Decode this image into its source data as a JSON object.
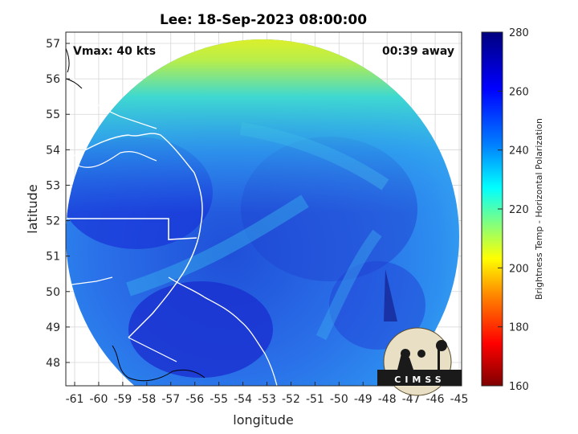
{
  "title": "Lee: 18-Sep-2023 08:00:00",
  "vmax_label": "Vmax: 40 kts",
  "time_label": "00:39 away",
  "x_axis": {
    "label": "longitude",
    "ticks": [
      "-61",
      "-60",
      "-59",
      "-58",
      "-57",
      "-56",
      "-55",
      "-54",
      "-53",
      "-52",
      "-51",
      "-50",
      "-49",
      "-48",
      "-47",
      "-46",
      "-45"
    ]
  },
  "y_axis": {
    "label": "latitude",
    "ticks": [
      "48",
      "49",
      "50",
      "51",
      "52",
      "53",
      "54",
      "55",
      "56",
      "57"
    ]
  },
  "colorbar": {
    "label": "Brightness Temp - Horizontal Polarization",
    "ticks": [
      "160",
      "180",
      "200",
      "220",
      "240",
      "260",
      "280"
    ],
    "range": [
      160,
      280
    ],
    "colormap": [
      "#7f0000",
      "#ff0000",
      "#ff8000",
      "#ffff00",
      "#80ff80",
      "#00ffff",
      "#0080ff",
      "#0000ff",
      "#00007f"
    ]
  },
  "logo_text": "CIMSS",
  "colors": {
    "background": "#ffffff",
    "coastline": "#ffffff",
    "land_outline": "#000000",
    "scene_edge": "#1a4fd6"
  }
}
